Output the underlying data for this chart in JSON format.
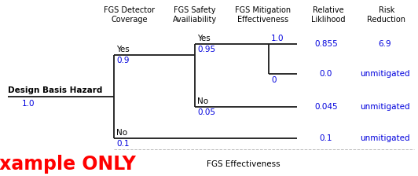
{
  "fig_width": 5.32,
  "fig_height": 2.24,
  "dpi": 100,
  "bg": "#ffffff",
  "line_color": "#1a1a1a",
  "blue": "#0000dd",
  "red": "#ff0000",
  "black": "#000000",
  "lw": 1.3,
  "col1_header": "FGS Detector\nCoverage",
  "col2_header": "FGS Safety\nAvailiability",
  "col3_header": "FGS Mitigation\nEffectiveness",
  "col4_header": "Relative\nLiklihood",
  "col5_header": "Risk\nReduction",
  "example_text": "Example ONLY",
  "fgs_eff_text": "FGS Effectiveness",
  "root_label": "Design Basis Hazard",
  "root_value": "1.0",
  "yes1_label": "Yes",
  "yes1_value": "0.9",
  "no1_label": "No",
  "no1_value": "0.1",
  "yes2_label": "Yes",
  "yes2_value": "0.95",
  "no2_label": "No",
  "no2_value": "0.05",
  "mit1_value": "1.0",
  "mit2_value": "0",
  "rel1": "0.855",
  "risk1": "6.9",
  "rel2": "0.0",
  "risk2": "unmitigated",
  "rel3": "0.045",
  "risk3": "unmitigated",
  "rel4": "0.1",
  "risk4": "unmitigated",
  "hfs": 7.0,
  "lfs": 7.5,
  "vfs": 7.5,
  "efs": 17,
  "gfs": 7.5
}
